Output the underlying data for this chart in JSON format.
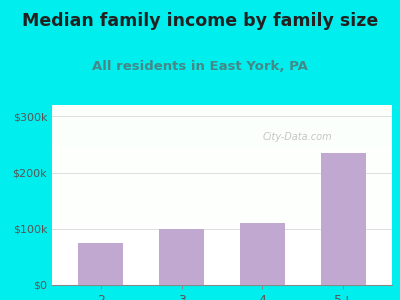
{
  "title": "Median family income by family size",
  "subtitle": "All residents in East York, PA",
  "categories": [
    "2",
    "3",
    "4",
    "5+"
  ],
  "values": [
    75000,
    100000,
    110000,
    235000
  ],
  "bar_color": "#c0a8d0",
  "outer_bg": "#00eeee",
  "title_color": "#222222",
  "subtitle_color": "#448888",
  "tick_color": "#555555",
  "yticks": [
    0,
    100000,
    200000,
    300000
  ],
  "ytick_labels": [
    "$0",
    "$100k",
    "$200k",
    "$300k"
  ],
  "ylim": [
    0,
    320000
  ],
  "watermark": "City-Data.com",
  "title_fontsize": 12.5,
  "subtitle_fontsize": 9.5,
  "grid_color": "#dddddd",
  "inner_bg_colors": [
    "#f5fff5",
    "#e0f0e0"
  ]
}
